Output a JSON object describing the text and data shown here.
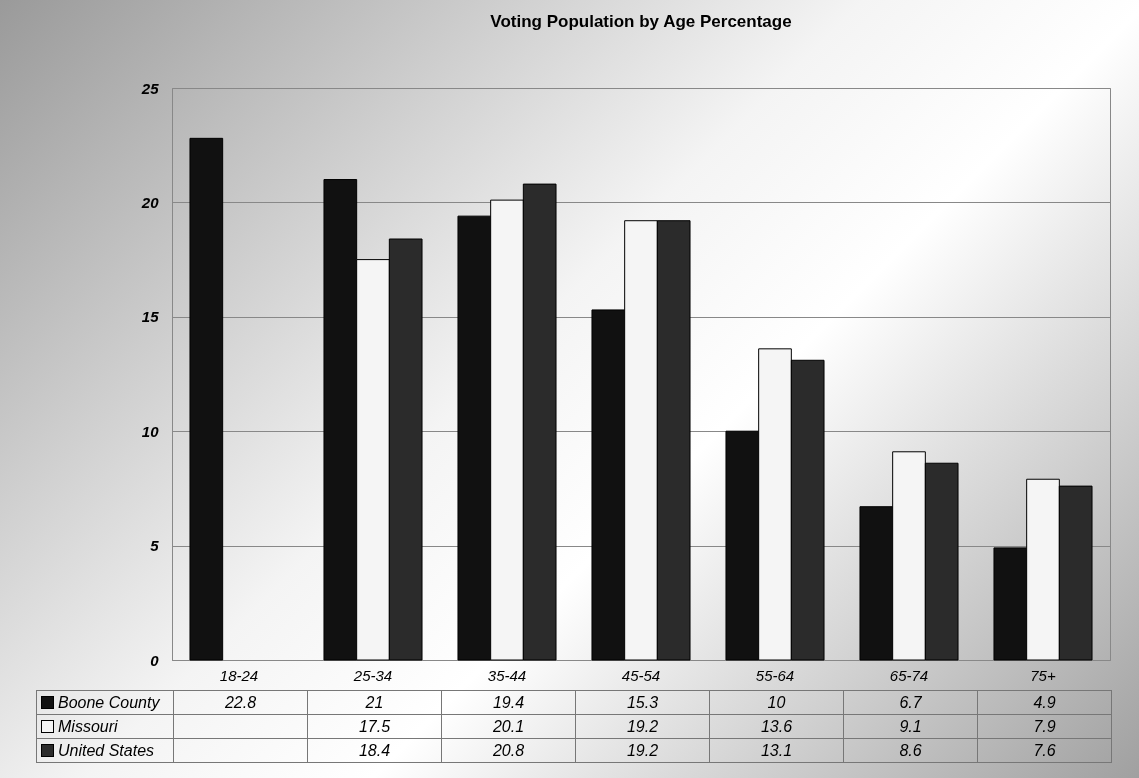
{
  "chart_data": {
    "type": "bar",
    "title": "Voting Population by Age Percentage",
    "categories": [
      "18-24",
      "25-34",
      "35-44",
      "45-54",
      "55-64",
      "65-74",
      "75+"
    ],
    "series": [
      {
        "name": "Boone County",
        "color": "#111111",
        "values": [
          22.8,
          21,
          19.4,
          15.3,
          10,
          6.7,
          4.9
        ]
      },
      {
        "name": "Missouri",
        "color": "#f5f5f5",
        "values": [
          null,
          17.5,
          20.1,
          19.2,
          13.6,
          9.1,
          7.9
        ]
      },
      {
        "name": "United States",
        "color": "#2b2b2b",
        "values": [
          null,
          18.4,
          20.8,
          19.2,
          13.1,
          8.6,
          7.6
        ]
      }
    ],
    "ylim": [
      0,
      25
    ],
    "yticks": [
      0,
      5,
      10,
      15,
      20,
      25
    ],
    "grid": "y",
    "legend": "bottom",
    "data_labels": true
  }
}
